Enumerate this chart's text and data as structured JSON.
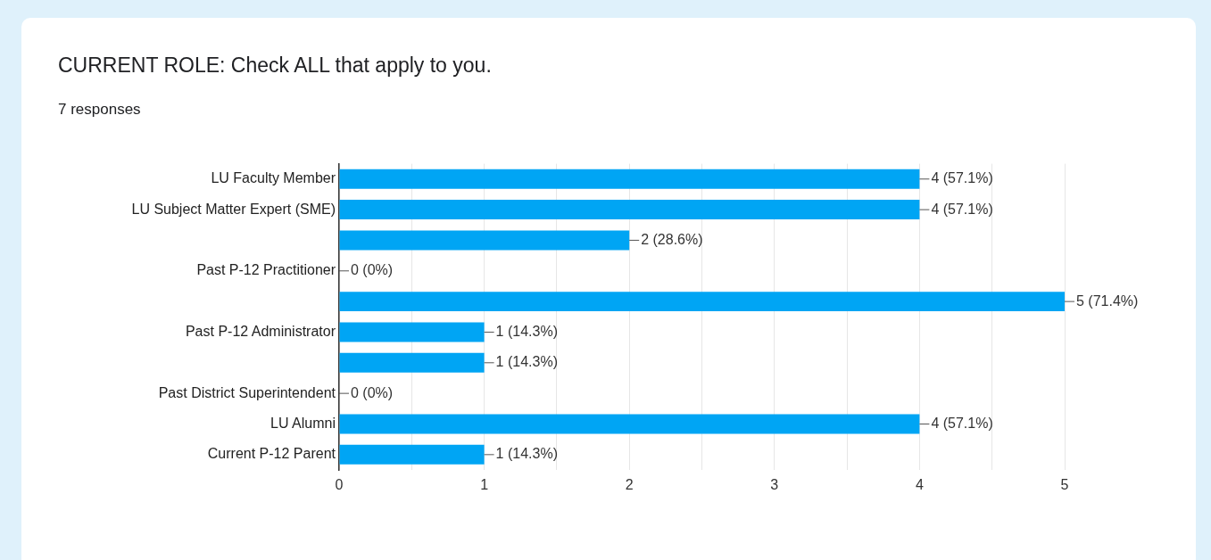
{
  "chart_data": {
    "type": "bar",
    "orientation": "horizontal",
    "title": "CURRENT ROLE: Check ALL that apply to you.",
    "subtitle": "7 responses",
    "categories": [
      "LU Faculty Member",
      "LU Subject Matter Expert (SME)",
      null,
      "Past P-12 Practitioner",
      null,
      "Past P-12 Administrator",
      null,
      "Past District Superintendent",
      "LU Alumni",
      "Current P-12 Parent"
    ],
    "values": [
      4,
      4,
      2,
      0,
      5,
      1,
      1,
      0,
      4,
      1
    ],
    "value_labels": [
      "4 (57.1%)",
      "4 (57.1%)",
      "2 (28.6%)",
      "0 (0%)",
      "5 (71.4%)",
      "1 (14.3%)",
      "1 (14.3%)",
      "0 (0%)",
      "4 (57.1%)",
      "1 (14.3%)"
    ],
    "color": "#00a5f4",
    "xlim": [
      0,
      5
    ],
    "xticks": [
      0,
      {
        "value": 0.5,
        "label": null
      },
      1,
      {
        "value": 1.5,
        "label": null
      },
      2,
      {
        "value": 2.5,
        "label": null
      },
      3,
      {
        "value": 3.5,
        "label": null
      },
      4,
      {
        "value": 4.5,
        "label": null
      },
      5
    ],
    "grid": "x",
    "legend": false
  }
}
